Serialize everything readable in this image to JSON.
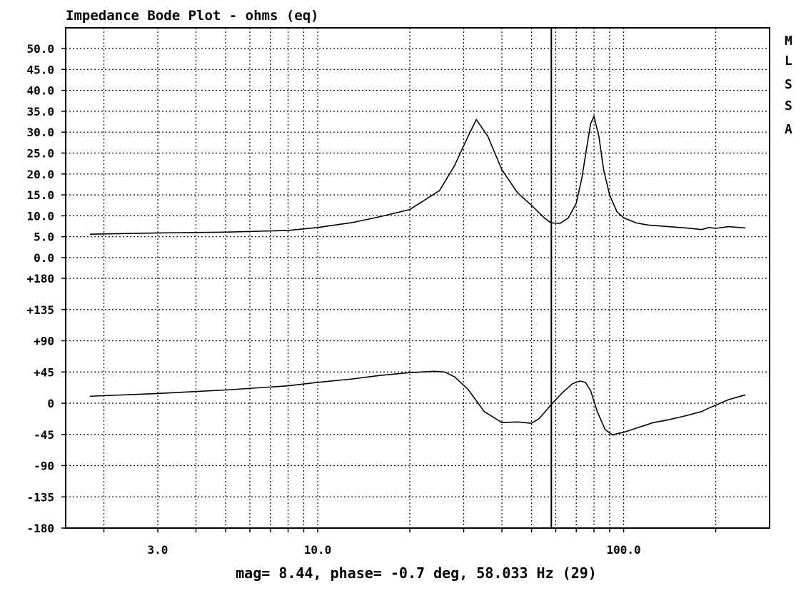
{
  "title": "Impedance Bode Plot - ohms (eq)",
  "side_label": [
    "M",
    "L",
    "S",
    "S",
    "A"
  ],
  "readout": "mag= 8.44, phase= -0.7 deg, 58.033 Hz (29)",
  "chart_data": {
    "type": "line",
    "title": "Impedance Bode Plot - ohms (eq)",
    "x_scale": "log",
    "xlim": [
      1.5,
      300
    ],
    "x_tick_labels": [
      {
        "value": 3.0,
        "label": "3.0"
      },
      {
        "value": 10.0,
        "label": "10.0"
      },
      {
        "value": 100.0,
        "label": "100.0"
      }
    ],
    "grid": true,
    "cursor_hz": 58.033,
    "magnitude": {
      "ylim": [
        0,
        50
      ],
      "y_tick_labels": [
        "50.0",
        "45.0",
        "40.0",
        "35.0",
        "30.0",
        "25.0",
        "20.0",
        "15.0",
        "10.0",
        "5.0",
        "0.0"
      ],
      "x": [
        1.8,
        3,
        5,
        8,
        10,
        13,
        16,
        20,
        25,
        28,
        31,
        33,
        36,
        40,
        45,
        50,
        55,
        58,
        62,
        66,
        70,
        73,
        76,
        78,
        80,
        83,
        86,
        90,
        95,
        100,
        110,
        120,
        140,
        160,
        180,
        190,
        200,
        220,
        250
      ],
      "y": [
        5.6,
        5.9,
        6.1,
        6.5,
        7.2,
        8.4,
        9.8,
        11.5,
        16,
        22,
        29,
        33,
        29,
        21,
        15.5,
        12.5,
        9.5,
        8.3,
        8.2,
        9.5,
        13,
        19,
        27,
        32,
        33.8,
        29,
        21,
        15,
        11,
        9.5,
        8.3,
        7.8,
        7.4,
        7.1,
        6.7,
        7.2,
        7.0,
        7.4,
        7.1
      ]
    },
    "phase": {
      "ylim": [
        -180,
        180
      ],
      "y_tick_labels": [
        "+180",
        "+135",
        "+90",
        "+45",
        "0",
        "-45",
        "-90",
        "-135",
        "-180"
      ],
      "x": [
        1.8,
        3,
        5,
        8,
        10,
        13,
        16,
        20,
        24,
        26,
        28,
        31,
        35,
        40,
        45,
        50,
        53,
        58,
        63,
        68,
        72,
        75,
        78,
        82,
        87,
        92,
        95,
        100,
        110,
        125,
        140,
        160,
        180,
        190,
        200,
        220,
        250
      ],
      "y": [
        10,
        14,
        19,
        25,
        30,
        35,
        40,
        44,
        46,
        45,
        38,
        20,
        -12,
        -28,
        -27,
        -29,
        -22,
        -2,
        15,
        28,
        32,
        30,
        18,
        -12,
        -38,
        -46,
        -44,
        -42,
        -36,
        -28,
        -24,
        -18,
        -12,
        -7,
        -3,
        5,
        12
      ]
    }
  }
}
